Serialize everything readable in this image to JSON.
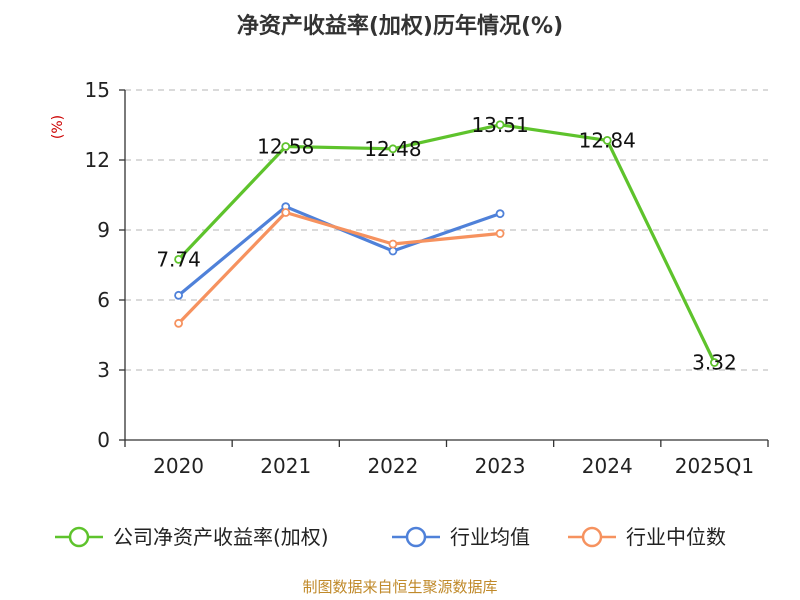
{
  "chart_data": {
    "type": "line",
    "title": "净资产收益率(加权)历年情况(%)",
    "ylabel": "(%)",
    "xlabel": "",
    "categories": [
      "2020",
      "2021",
      "2022",
      "2023",
      "2024",
      "2025Q1"
    ],
    "ylim": [
      0,
      15
    ],
    "yticks": [
      0,
      3,
      6,
      9,
      12,
      15
    ],
    "grid": true,
    "legend_position": "bottom",
    "series": [
      {
        "name": "公司净资产收益率(加权)",
        "color": "#5ec32c",
        "values": [
          7.74,
          12.58,
          12.48,
          13.51,
          12.84,
          3.32
        ],
        "show_labels": true
      },
      {
        "name": "行业均值",
        "color": "#4f81d9",
        "values": [
          6.2,
          10.0,
          8.1,
          9.7,
          null,
          null
        ],
        "show_labels": false
      },
      {
        "name": "行业中位数",
        "color": "#f6925f",
        "values": [
          5.0,
          9.75,
          8.4,
          8.85,
          null,
          null
        ],
        "show_labels": false
      }
    ],
    "source": "制图数据来自恒生聚源数据库"
  }
}
